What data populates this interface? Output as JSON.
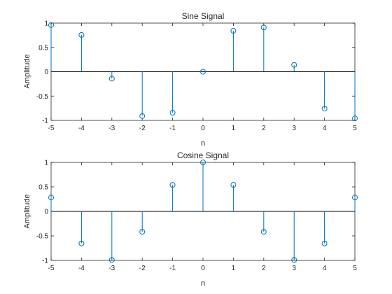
{
  "chart_data": [
    {
      "type": "stem",
      "title": "Sine Signal",
      "xlabel": "n",
      "ylabel": "Amplitude",
      "xlim": [
        -5,
        5
      ],
      "ylim": [
        -1,
        1
      ],
      "xticks": [
        -5,
        -4,
        -3,
        -2,
        -1,
        0,
        1,
        2,
        3,
        4,
        5
      ],
      "yticks": [
        -1,
        -0.5,
        0,
        0.5,
        1
      ],
      "xtick_labels": [
        "-5",
        "-4",
        "-3",
        "-2",
        "-1",
        "0",
        "1",
        "2",
        "3",
        "4",
        "5"
      ],
      "ytick_labels": [
        "-1",
        "-0.5",
        "0",
        "0.5",
        "1"
      ],
      "grid": false,
      "color": "#0072BD",
      "x": [
        -5,
        -4,
        -3,
        -2,
        -1,
        0,
        1,
        2,
        3,
        4,
        5
      ],
      "y": [
        0.9589,
        0.7568,
        -0.1411,
        -0.9093,
        -0.8415,
        0,
        0.8415,
        0.9093,
        0.1411,
        -0.7568,
        -0.9589
      ]
    },
    {
      "type": "stem",
      "title": "Cosine Signal",
      "xlabel": "n",
      "ylabel": "Amplitude",
      "xlim": [
        -5,
        5
      ],
      "ylim": [
        -1,
        1
      ],
      "xticks": [
        -5,
        -4,
        -3,
        -2,
        -1,
        0,
        1,
        2,
        3,
        4,
        5
      ],
      "yticks": [
        -1,
        -0.5,
        0,
        0.5,
        1
      ],
      "xtick_labels": [
        "-5",
        "-4",
        "-3",
        "-2",
        "-1",
        "0",
        "1",
        "2",
        "3",
        "4",
        "5"
      ],
      "ytick_labels": [
        "-1",
        "-0.5",
        "0",
        "0.5",
        "1"
      ],
      "grid": false,
      "color": "#0072BD",
      "x": [
        -5,
        -4,
        -3,
        -2,
        -1,
        0,
        1,
        2,
        3,
        4,
        5
      ],
      "y": [
        0.2837,
        -0.6536,
        -0.99,
        -0.4161,
        0.5403,
        1,
        0.5403,
        -0.4161,
        -0.99,
        -0.6536,
        0.2837
      ]
    }
  ]
}
